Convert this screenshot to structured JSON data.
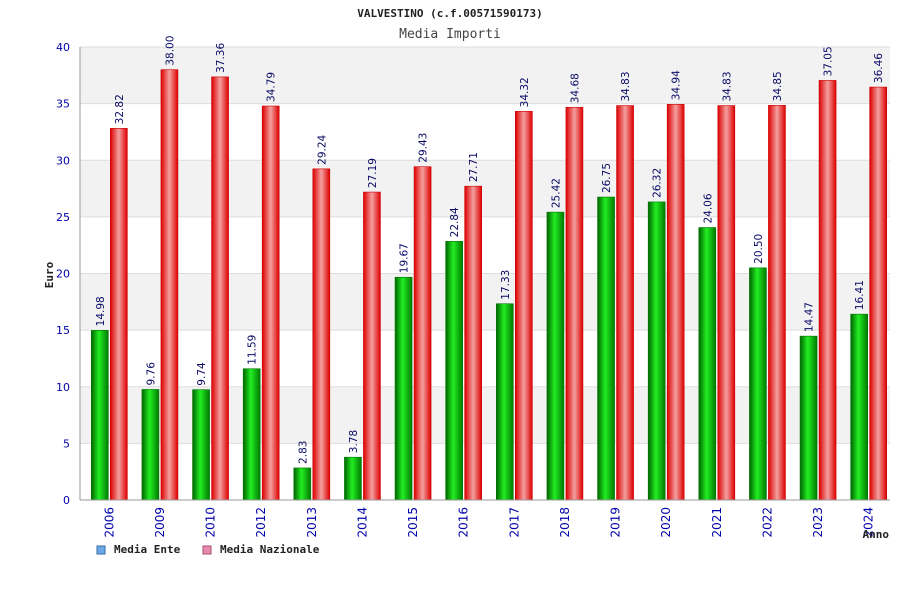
{
  "chart_data": {
    "type": "bar",
    "title": "VALVESTINO (c.f.00571590173)",
    "subtitle": "Media Importi",
    "xlabel": "Anno",
    "ylabel": "Euro",
    "ylim": [
      0,
      40
    ],
    "yticks": [
      "0",
      "5",
      "10",
      "15",
      "20",
      "25",
      "30",
      "35",
      "40"
    ],
    "grid": true,
    "legend_position": "bottom-left",
    "categories": [
      "2006",
      "2009",
      "2010",
      "2012",
      "2013",
      "2014",
      "2015",
      "2016",
      "2017",
      "2018",
      "2019",
      "2020",
      "2021",
      "2022",
      "2023",
      "2024"
    ],
    "series": [
      {
        "name": "Media Ente",
        "color": "#00aa00",
        "values": [
          14.98,
          9.76,
          9.74,
          11.59,
          2.83,
          3.78,
          19.67,
          22.84,
          17.33,
          25.42,
          26.75,
          26.32,
          24.06,
          20.5,
          14.47,
          16.41
        ],
        "labels": [
          "14.98",
          "9.76",
          "9.74",
          "11.59",
          "2.83",
          "3.78",
          "19.67",
          "22.84",
          "17.33",
          "25.42",
          "26.75",
          "26.32",
          "24.06",
          "20.50",
          "14.47",
          "16.41"
        ]
      },
      {
        "name": "Media Nazionale",
        "color": "#ee1111",
        "values": [
          32.82,
          38.0,
          37.36,
          34.79,
          29.24,
          27.19,
          29.43,
          27.71,
          34.32,
          34.68,
          34.83,
          34.94,
          34.83,
          34.85,
          37.05,
          36.46
        ],
        "labels": [
          "32.82",
          "38.00",
          "37.36",
          "34.79",
          "29.24",
          "27.19",
          "29.43",
          "27.71",
          "34.32",
          "34.68",
          "34.83",
          "34.94",
          "34.83",
          "34.85",
          "37.05",
          "36.46"
        ]
      }
    ],
    "legend": [
      {
        "label": "Media Ente",
        "color": "#6aa7e8"
      },
      {
        "label": "Media Nazionale",
        "color": "#e88ab0"
      }
    ]
  }
}
